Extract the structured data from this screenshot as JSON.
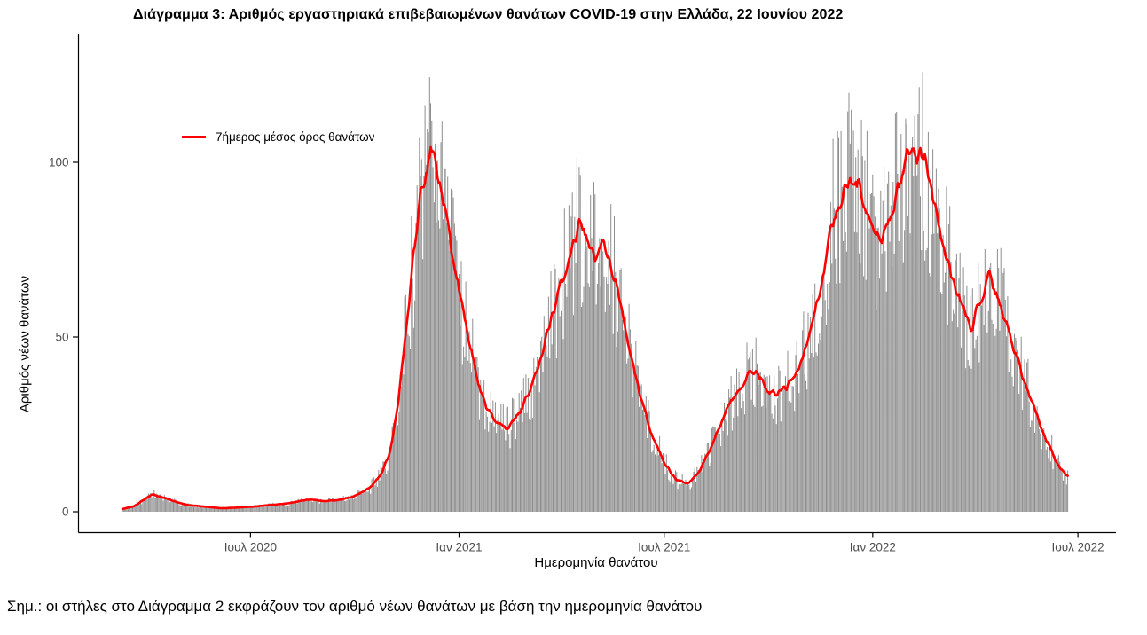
{
  "footnote": {
    "text": "Σημ.: οι στήλες στο Διάγραμμα 2 εκφράζουν τον αριθμό νέων θανάτων με βάση την ημερομηνία θανάτου"
  },
  "chart_data": {
    "type": "bar",
    "title": "Διάγραμμα 3: Αριθμός εργαστηριακά επιβεβαιωμένων θανάτων COVID-19 στην Ελλάδα, 22 Ιουνίου 2022",
    "xlabel": "Ημερομηνία θανάτου",
    "ylabel": "Αριθμός νέων θανάτων",
    "bars_description": "Ημερήσιοι νέοι θάνατοι COVID-19 με βάση την ημερομηνία θανάτου (γκρίζες στήλες γύρω από τον 7ήμερο μέσο όρο)",
    "x_range": [
      "2020-03-10",
      "2022-06-22"
    ],
    "ylim": [
      0,
      135
    ],
    "y_ticks": [
      0,
      50,
      100
    ],
    "x_ticks": [
      {
        "date": "2020-07-01",
        "label": "Ιουλ 2020"
      },
      {
        "date": "2021-01-01",
        "label": "Ιαν 2021"
      },
      {
        "date": "2021-07-01",
        "label": "Ιουλ 2021"
      },
      {
        "date": "2022-01-01",
        "label": "Ιαν 2022"
      },
      {
        "date": "2022-07-01",
        "label": "Ιουλ 2022"
      }
    ],
    "grid": false,
    "legend": {
      "position": "top-left",
      "label": "7ήμερος μέσος όρος θανάτων"
    },
    "colors": {
      "bar": "#8e8e8e",
      "line": "#ff0000",
      "axis": "#000000",
      "tick_text": "#4d4d4d"
    },
    "series": [
      {
        "name": "7ήμερος μέσος όρος θανάτων",
        "type": "line",
        "color": "#ff0000",
        "points": [
          [
            "2020-03-10",
            0.8
          ],
          [
            "2020-03-20",
            1.5
          ],
          [
            "2020-03-27",
            3
          ],
          [
            "2020-04-05",
            5
          ],
          [
            "2020-04-15",
            4
          ],
          [
            "2020-04-25",
            3
          ],
          [
            "2020-05-05",
            2
          ],
          [
            "2020-05-20",
            1.5
          ],
          [
            "2020-06-05",
            1
          ],
          [
            "2020-06-20",
            1.2
          ],
          [
            "2020-07-05",
            1.5
          ],
          [
            "2020-07-20",
            2
          ],
          [
            "2020-08-05",
            2.5
          ],
          [
            "2020-08-20",
            3.5
          ],
          [
            "2020-09-05",
            3
          ],
          [
            "2020-09-20",
            3.5
          ],
          [
            "2020-10-05",
            5
          ],
          [
            "2020-10-15",
            7
          ],
          [
            "2020-10-25",
            11
          ],
          [
            "2020-11-02",
            18
          ],
          [
            "2020-11-09",
            32
          ],
          [
            "2020-11-16",
            55
          ],
          [
            "2020-11-23",
            75
          ],
          [
            "2020-11-29",
            92
          ],
          [
            "2020-12-04",
            100
          ],
          [
            "2020-12-09",
            102
          ],
          [
            "2020-12-14",
            97
          ],
          [
            "2020-12-20",
            88
          ],
          [
            "2020-12-27",
            72
          ],
          [
            "2021-01-03",
            60
          ],
          [
            "2021-01-10",
            48
          ],
          [
            "2021-01-17",
            38
          ],
          [
            "2021-01-25",
            30
          ],
          [
            "2021-02-02",
            26
          ],
          [
            "2021-02-12",
            24
          ],
          [
            "2021-02-22",
            28
          ],
          [
            "2021-03-04",
            34
          ],
          [
            "2021-03-14",
            44
          ],
          [
            "2021-03-24",
            56
          ],
          [
            "2021-04-03",
            68
          ],
          [
            "2021-04-10",
            76
          ],
          [
            "2021-04-17",
            82
          ],
          [
            "2021-04-24",
            78
          ],
          [
            "2021-05-01",
            74
          ],
          [
            "2021-05-08",
            77
          ],
          [
            "2021-05-15",
            71
          ],
          [
            "2021-05-23",
            60
          ],
          [
            "2021-06-01",
            46
          ],
          [
            "2021-06-10",
            33
          ],
          [
            "2021-06-20",
            22
          ],
          [
            "2021-07-01",
            14
          ],
          [
            "2021-07-12",
            9
          ],
          [
            "2021-07-22",
            8
          ],
          [
            "2021-08-02",
            12
          ],
          [
            "2021-08-12",
            19
          ],
          [
            "2021-08-23",
            28
          ],
          [
            "2021-09-03",
            34
          ],
          [
            "2021-09-13",
            39
          ],
          [
            "2021-09-21",
            40
          ],
          [
            "2021-09-30",
            35
          ],
          [
            "2021-10-08",
            33
          ],
          [
            "2021-10-17",
            36
          ],
          [
            "2021-10-26",
            40
          ],
          [
            "2021-11-04",
            48
          ],
          [
            "2021-11-12",
            58
          ],
          [
            "2021-11-20",
            72
          ],
          [
            "2021-11-28",
            85
          ],
          [
            "2021-12-06",
            92
          ],
          [
            "2021-12-13",
            95
          ],
          [
            "2021-12-20",
            93
          ],
          [
            "2021-12-28",
            85
          ],
          [
            "2022-01-05",
            77
          ],
          [
            "2022-01-13",
            80
          ],
          [
            "2022-01-21",
            90
          ],
          [
            "2022-01-29",
            99
          ],
          [
            "2022-02-05",
            104
          ],
          [
            "2022-02-12",
            103
          ],
          [
            "2022-02-19",
            95
          ],
          [
            "2022-02-26",
            85
          ],
          [
            "2022-03-06",
            74
          ],
          [
            "2022-03-14",
            65
          ],
          [
            "2022-03-22",
            58
          ],
          [
            "2022-03-29",
            53
          ],
          [
            "2022-04-06",
            60
          ],
          [
            "2022-04-14",
            67
          ],
          [
            "2022-04-21",
            62
          ],
          [
            "2022-04-28",
            55
          ],
          [
            "2022-05-06",
            47
          ],
          [
            "2022-05-14",
            38
          ],
          [
            "2022-05-22",
            31
          ],
          [
            "2022-05-30",
            24
          ],
          [
            "2022-06-07",
            18
          ],
          [
            "2022-06-14",
            13
          ],
          [
            "2022-06-22",
            10
          ]
        ]
      }
    ]
  }
}
